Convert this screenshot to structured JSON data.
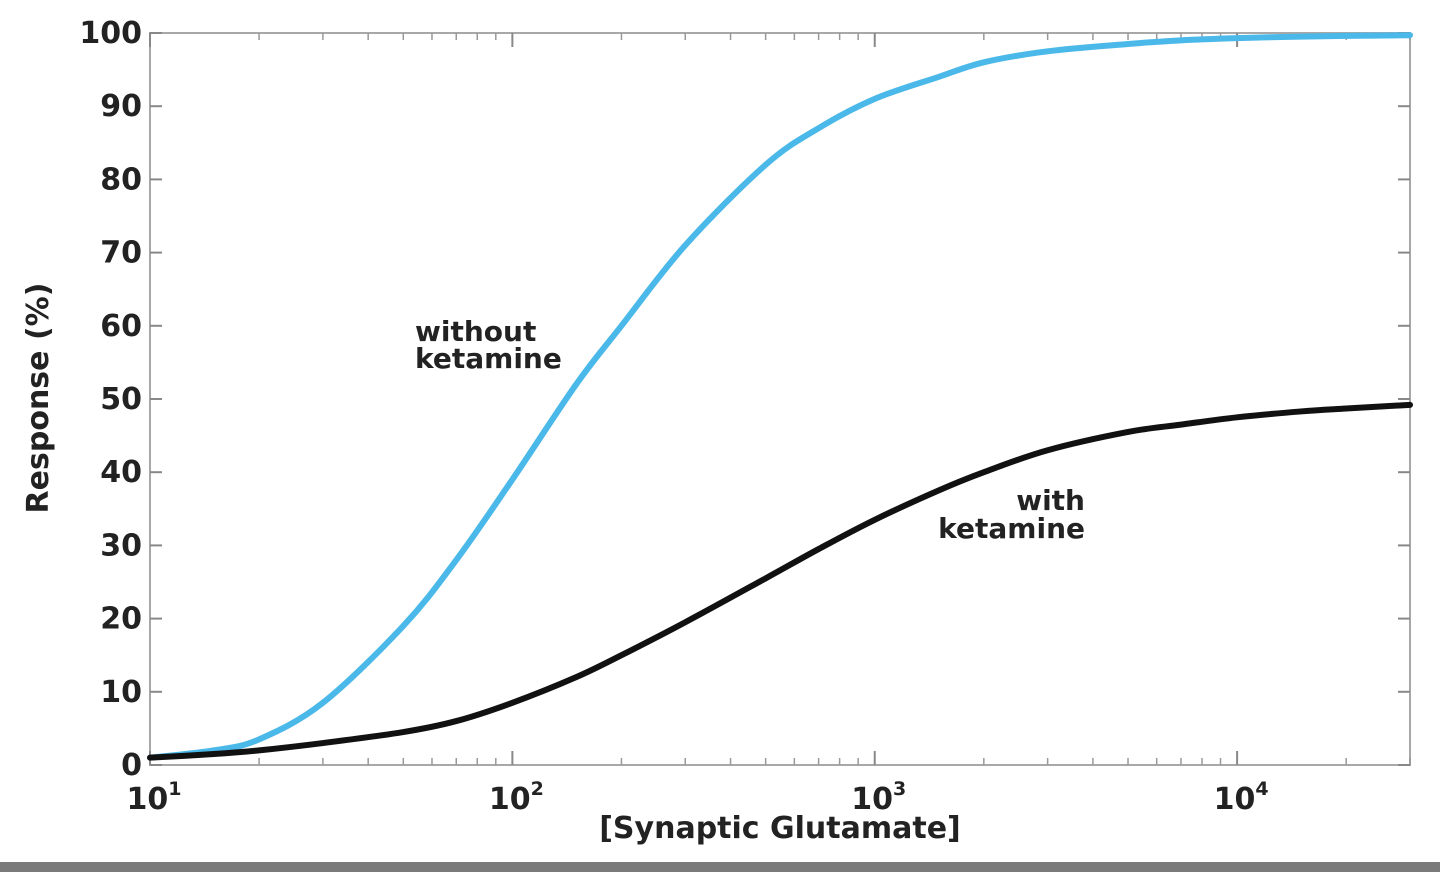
{
  "chart_data": {
    "type": "line",
    "title": "",
    "xlabel": "[Synaptic Glutamate]",
    "ylabel": "Response (%)",
    "xscale": "log",
    "xlim": [
      10,
      30000
    ],
    "ylim": [
      0,
      100
    ],
    "yticks": [
      "0",
      "10",
      "20",
      "30",
      "40",
      "50",
      "60",
      "70",
      "80",
      "90",
      "100"
    ],
    "xticks": [
      {
        "base": "10",
        "exp": "1",
        "value": 10
      },
      {
        "base": "10",
        "exp": "2",
        "value": 100
      },
      {
        "base": "10",
        "exp": "3",
        "value": 1000
      },
      {
        "base": "10",
        "exp": "4",
        "value": 10000
      }
    ],
    "grid": false,
    "series": [
      {
        "name": "without ketamine",
        "color": "#4ab8e8",
        "x": [
          10,
          15,
          20,
          30,
          50,
          70,
          100,
          150,
          200,
          300,
          500,
          700,
          1000,
          1500,
          2000,
          3000,
          5000,
          7000,
          10000,
          15000,
          20000,
          30000
        ],
        "y": [
          1,
          2,
          3.5,
          8.5,
          19,
          28,
          39,
          52,
          60,
          71,
          82,
          87,
          91,
          94,
          96,
          97.5,
          98.5,
          99,
          99.3,
          99.5,
          99.6,
          99.7
        ]
      },
      {
        "name": "with ketamine",
        "color": "#111111",
        "x": [
          10,
          15,
          20,
          30,
          50,
          70,
          100,
          150,
          200,
          300,
          500,
          700,
          1000,
          1500,
          2000,
          3000,
          5000,
          7000,
          10000,
          15000,
          20000,
          30000
        ],
        "y": [
          1,
          1.5,
          2,
          3,
          4.5,
          6,
          8.5,
          12,
          15,
          19.5,
          25.5,
          29.5,
          33.5,
          37.5,
          40,
          43,
          45.5,
          46.5,
          47.5,
          48.3,
          48.7,
          49.2
        ]
      }
    ],
    "annotations": [
      {
        "id": "without",
        "lines": [
          "without",
          "ketamine"
        ]
      },
      {
        "id": "with",
        "lines": [
          "with",
          "ketamine"
        ]
      }
    ]
  }
}
